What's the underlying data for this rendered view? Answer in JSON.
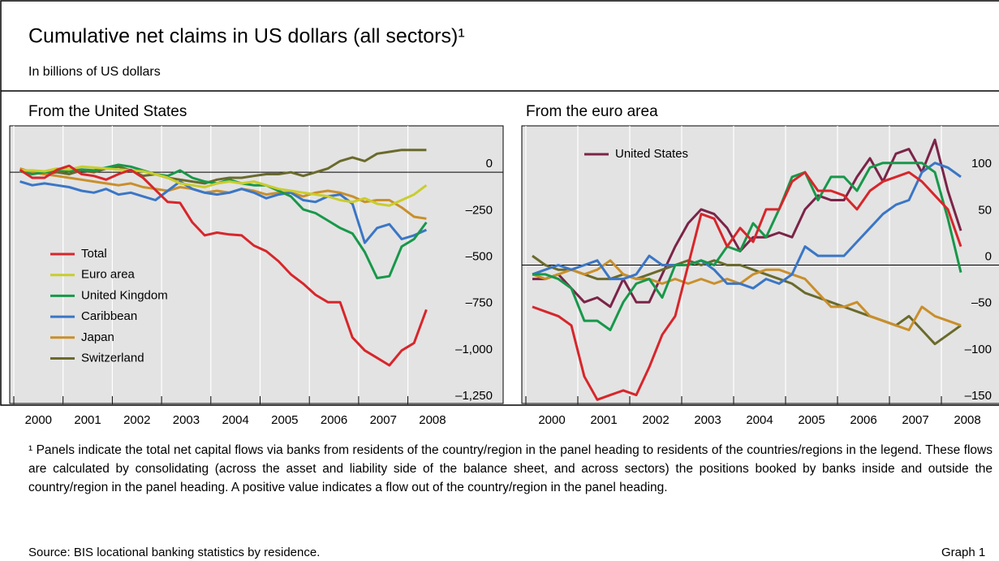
{
  "title": "Cumulative net claims in US dollars (all sectors)¹",
  "subtitle": "In billions of US dollars",
  "footnote": "¹ Panels indicate the total net capital flows via banks from residents of the country/region in the panel heading to residents of the countries/regions in the legend. These flows are calculated by consolidating (across the asset and liability side of the balance sheet, and across sectors) the positions booked by banks inside and outside the country/region in the panel heading. A positive value indicates a flow out of the country/region in the panel heading.",
  "source": "Source: BIS locational banking statistics by residence.",
  "graph_label": "Graph 1",
  "chart_data": [
    {
      "type": "line",
      "title": "From the United States",
      "legend": "lower left",
      "x": [
        2000.125,
        2000.375,
        2000.625,
        2000.875,
        2001.125,
        2001.375,
        2001.625,
        2001.875,
        2002.125,
        2002.375,
        2002.625,
        2002.875,
        2003.125,
        2003.375,
        2003.625,
        2003.875,
        2004.125,
        2004.375,
        2004.625,
        2004.875,
        2005.125,
        2005.375,
        2005.625,
        2005.875,
        2006.125,
        2006.375,
        2006.625,
        2006.875,
        2007.125,
        2007.375,
        2007.625,
        2007.875,
        2008.125,
        2008.375
      ],
      "xlim": [
        2000,
        2010
      ],
      "xticks": [
        2000,
        2001,
        2002,
        2003,
        2004,
        2005,
        2006,
        2007,
        2008
      ],
      "ylim": [
        -1250,
        250
      ],
      "yticks": [
        0,
        {
          "value": -250,
          "label": "–250"
        },
        {
          "value": -500,
          "label": "–500"
        },
        {
          "value": -750,
          "label": "–750"
        },
        {
          "value": -1000,
          "label": "–1,000"
        },
        {
          "value": -1250,
          "label": "–1,250"
        }
      ],
      "series": [
        {
          "name": "Total",
          "color": "#d7262b",
          "values": [
            13,
            -30,
            -30,
            13,
            35,
            -10,
            -20,
            -40,
            -10,
            13,
            -30,
            -95,
            -160,
            -165,
            -270,
            -340,
            -325,
            -335,
            -340,
            -395,
            -425,
            -480,
            -550,
            -600,
            -660,
            -700,
            -700,
            -890,
            -960,
            -1000,
            -1040,
            -960,
            -920,
            -740
          ]
        },
        {
          "name": "Euro area",
          "color": "#c9cd2c",
          "values": [
            10,
            10,
            5,
            20,
            15,
            30,
            25,
            20,
            15,
            10,
            5,
            -10,
            -30,
            -60,
            -70,
            -80,
            -60,
            -50,
            -60,
            -50,
            -70,
            -90,
            -100,
            -110,
            -120,
            -130,
            -150,
            -160,
            -140,
            -170,
            -180,
            -150,
            -120,
            -70
          ]
        },
        {
          "name": "United Kingdom",
          "color": "#17984a",
          "values": [
            5,
            -10,
            0,
            10,
            5,
            15,
            10,
            25,
            40,
            30,
            10,
            -10,
            -20,
            10,
            -30,
            -50,
            -60,
            -40,
            -60,
            -70,
            -70,
            -100,
            -130,
            -200,
            -220,
            -260,
            -300,
            -330,
            -430,
            -570,
            -560,
            -400,
            -360,
            -270
          ]
        },
        {
          "name": "Caribbean",
          "color": "#3a76c6",
          "values": [
            -50,
            -70,
            -60,
            -70,
            -80,
            -100,
            -110,
            -90,
            -120,
            -110,
            -130,
            -150,
            -100,
            -50,
            -90,
            -110,
            -120,
            -110,
            -90,
            -110,
            -140,
            -120,
            -110,
            -150,
            -160,
            -130,
            -120,
            -170,
            -380,
            -300,
            -280,
            -360,
            -340,
            -310
          ]
        },
        {
          "name": "Japan",
          "color": "#c98f2b",
          "values": [
            20,
            0,
            -10,
            -20,
            -30,
            -40,
            -50,
            -60,
            -70,
            -60,
            -80,
            -90,
            -100,
            -80,
            -90,
            -110,
            -100,
            -110,
            -90,
            -100,
            -120,
            -110,
            -110,
            -130,
            -110,
            -100,
            -110,
            -130,
            -160,
            -150,
            -150,
            -190,
            -240,
            -250
          ]
        },
        {
          "name": "Switzerland",
          "color": "#6a6a2c",
          "values": [
            15,
            0,
            -10,
            0,
            -10,
            10,
            0,
            20,
            30,
            10,
            -20,
            -10,
            -30,
            -40,
            -50,
            -60,
            -40,
            -30,
            -30,
            -20,
            -10,
            -10,
            0,
            -20,
            0,
            20,
            60,
            80,
            60,
            100,
            110,
            120,
            120,
            120
          ]
        }
      ]
    },
    {
      "type": "line",
      "title": "From the euro area",
      "legend": "upper left",
      "x": [
        2000.125,
        2000.375,
        2000.625,
        2000.875,
        2001.125,
        2001.375,
        2001.625,
        2001.875,
        2002.125,
        2002.375,
        2002.625,
        2002.875,
        2003.125,
        2003.375,
        2003.625,
        2003.875,
        2004.125,
        2004.375,
        2004.625,
        2004.875,
        2005.125,
        2005.375,
        2005.625,
        2005.875,
        2006.125,
        2006.375,
        2006.625,
        2006.875,
        2007.125,
        2007.375,
        2007.625,
        2007.875,
        2008.125,
        2008.375
      ],
      "xlim": [
        2000,
        9.25
      ],
      "xticks": [
        2000,
        2001,
        2002,
        2003,
        2004,
        2005,
        2006,
        2007,
        2008
      ],
      "ylim": [
        -150,
        150
      ],
      "yticks": [
        100,
        50,
        0,
        {
          "value": -50,
          "label": "–50"
        },
        {
          "value": -100,
          "label": "–100"
        },
        {
          "value": -150,
          "label": "–150"
        }
      ],
      "series": [
        {
          "color": "#d7262b",
          "values": [
            -45,
            -50,
            -55,
            -65,
            -120,
            -145,
            -140,
            -135,
            -140,
            -110,
            -75,
            -55,
            0,
            55,
            50,
            20,
            40,
            25,
            60,
            60,
            90,
            100,
            80,
            80,
            75,
            60,
            80,
            90,
            95,
            100,
            90,
            75,
            60,
            20
          ]
        },
        {
          "color": "#17984a",
          "values": [
            -10,
            -10,
            -15,
            -25,
            -60,
            -60,
            -70,
            -40,
            -20,
            -15,
            -35,
            0,
            0,
            5,
            0,
            20,
            15,
            45,
            30,
            60,
            95,
            100,
            70,
            95,
            95,
            80,
            105,
            110,
            110,
            110,
            110,
            100,
            50,
            -8
          ]
        },
        {
          "color": "#3a76c6",
          "values": [
            -10,
            -5,
            0,
            -5,
            0,
            5,
            -15,
            -15,
            -10,
            10,
            0,
            0,
            0,
            5,
            -5,
            -20,
            -20,
            -25,
            -15,
            -20,
            -10,
            20,
            10,
            10,
            10,
            25,
            40,
            55,
            65,
            70,
            100,
            110,
            105,
            95
          ]
        },
        {
          "color": "#c98f2b",
          "values": [
            -10,
            -15,
            -10,
            -5,
            -10,
            -5,
            5,
            -10,
            -15,
            -15,
            -20,
            -15,
            -20,
            -15,
            -20,
            -15,
            -20,
            -10,
            -5,
            -5,
            -10,
            -15,
            -30,
            -45,
            -45,
            -40,
            -55,
            -60,
            -65,
            -70,
            -45,
            -55,
            -60,
            -65
          ]
        },
        {
          "color": "#6a6a2c",
          "values": [
            10,
            0,
            -5,
            -5,
            -10,
            -15,
            -15,
            -10,
            -15,
            -10,
            -5,
            0,
            5,
            0,
            5,
            0,
            0,
            -5,
            -10,
            -15,
            -20,
            -30,
            -35,
            -40,
            -45,
            -50,
            -55,
            -60,
            -65,
            -55,
            -70,
            -85,
            -75,
            -65
          ]
        },
        {
          "name": "United States",
          "color": "#7b2448",
          "values": [
            -15,
            -15,
            -10,
            -25,
            -40,
            -35,
            -45,
            -15,
            -40,
            -40,
            -10,
            20,
            45,
            60,
            55,
            40,
            15,
            30,
            30,
            35,
            30,
            60,
            75,
            70,
            70,
            95,
            115,
            90,
            120,
            125,
            100,
            135,
            80,
            37
          ]
        }
      ]
    }
  ]
}
